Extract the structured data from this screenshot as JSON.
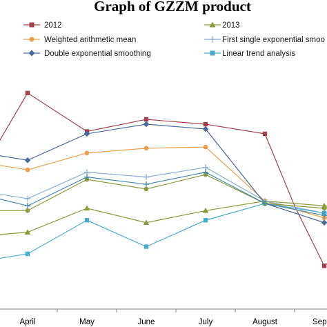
{
  "chart_data": {
    "type": "line",
    "title": "Graph of GZZM product",
    "xlabel": "",
    "ylabel": "",
    "categories": [
      "April",
      "May",
      "June",
      "July",
      "August",
      "Septer"
    ],
    "ylim": [
      0,
      100
    ],
    "grid": false,
    "legend_position": "top",
    "series": [
      {
        "name": "2012",
        "color": "#a0404c",
        "marker": "square-filled",
        "values": [
          {
            "x": -0.5,
            "y": 69
          },
          {
            "x": 0,
            "y": 90
          },
          {
            "x": 1,
            "y": 74
          },
          {
            "x": 2,
            "y": 79
          },
          {
            "x": 3,
            "y": 77
          },
          {
            "x": 4,
            "y": 73
          },
          {
            "x": 4.5,
            "y": 43
          },
          {
            "x": 5,
            "y": 18
          },
          {
            "x": 5.35,
            "y": 25
          }
        ]
      },
      {
        "name": "2013",
        "color": "#8a9a3c",
        "marker": "triangle",
        "values": [
          {
            "x": -0.5,
            "y": 31
          },
          {
            "x": 0,
            "y": 32
          },
          {
            "x": 1,
            "y": 42
          },
          {
            "x": 2,
            "y": 36
          },
          {
            "x": 3,
            "y": 41
          },
          {
            "x": 4,
            "y": 45
          },
          {
            "x": 5,
            "y": 43
          },
          {
            "x": 5.35,
            "y": 42
          }
        ]
      },
      {
        "name": "Weighted arithmetic mean",
        "color": "#e8a04c",
        "marker": "circle",
        "values": [
          {
            "x": -0.5,
            "y": 60
          },
          {
            "x": 0,
            "y": 58
          },
          {
            "x": 1,
            "y": 65
          },
          {
            "x": 2,
            "y": 67
          },
          {
            "x": 3,
            "y": 67.5
          },
          {
            "x": 4,
            "y": 45
          },
          {
            "x": 5,
            "y": 38
          },
          {
            "x": 5.35,
            "y": 38
          }
        ]
      },
      {
        "name": "First single exponential smoothing",
        "color": "#8aaed6",
        "marker": "plus",
        "values": [
          {
            "x": -0.5,
            "y": 48
          },
          {
            "x": 0,
            "y": 46
          },
          {
            "x": 1,
            "y": 57
          },
          {
            "x": 2,
            "y": 55
          },
          {
            "x": 3,
            "y": 59
          },
          {
            "x": 4,
            "y": 45
          },
          {
            "x": 5,
            "y": 40
          },
          {
            "x": 5.35,
            "y": 39
          }
        ]
      },
      {
        "name": "Double exponential smoothing",
        "color": "#4a6a9a",
        "marker": "diamond",
        "values": [
          {
            "x": -0.5,
            "y": 64
          },
          {
            "x": 0,
            "y": 62
          },
          {
            "x": 1,
            "y": 73
          },
          {
            "x": 2,
            "y": 77
          },
          {
            "x": 3,
            "y": 75
          },
          {
            "x": 4,
            "y": 44
          },
          {
            "x": 5,
            "y": 36
          },
          {
            "x": 5.35,
            "y": 36
          }
        ]
      },
      {
        "name": "Linear trend analysis",
        "color": "#4aaccc",
        "marker": "square-filled",
        "values": [
          {
            "x": -0.5,
            "y": 21
          },
          {
            "x": 0,
            "y": 23
          },
          {
            "x": 1,
            "y": 37
          },
          {
            "x": 2,
            "y": 26
          },
          {
            "x": 3,
            "y": 37
          },
          {
            "x": 4,
            "y": 44
          },
          {
            "x": 5,
            "y": 40
          },
          {
            "x": 5.35,
            "y": 41
          }
        ]
      },
      {
        "name": "",
        "color": "#8a9a3c",
        "marker": "circle",
        "values": [
          {
            "x": -0.5,
            "y": 41
          },
          {
            "x": 0,
            "y": 41
          },
          {
            "x": 1,
            "y": 54
          },
          {
            "x": 2,
            "y": 50
          },
          {
            "x": 3,
            "y": 56
          },
          {
            "x": 4,
            "y": 44
          },
          {
            "x": 5,
            "y": 42
          },
          {
            "x": 5.35,
            "y": 42
          }
        ]
      },
      {
        "name": "",
        "color": "#4a8aa8",
        "marker": "plus",
        "values": [
          {
            "x": -0.5,
            "y": 46
          },
          {
            "x": 0,
            "y": 43
          },
          {
            "x": 1,
            "y": 55
          },
          {
            "x": 2,
            "y": 52
          },
          {
            "x": 3,
            "y": 57
          },
          {
            "x": 4,
            "y": 44
          },
          {
            "x": 5,
            "y": 39
          },
          {
            "x": 5.35,
            "y": 38
          }
        ]
      }
    ],
    "legend_items": [
      {
        "label": "2012",
        "color": "#a0404c",
        "marker": "square-filled"
      },
      {
        "label": "2013",
        "color": "#8a9a3c",
        "marker": "triangle"
      },
      {
        "label": "Weighted arithmetic mean",
        "color": "#e8a04c",
        "marker": "circle"
      },
      {
        "label": "First single exponential smoo",
        "color": "#8aaed6",
        "marker": "plus"
      },
      {
        "label": "Double exponential smoothing",
        "color": "#4a6a9a",
        "marker": "diamond"
      },
      {
        "label": "Linear trend analysis",
        "color": "#4aaccc",
        "marker": "square-filled"
      }
    ]
  }
}
